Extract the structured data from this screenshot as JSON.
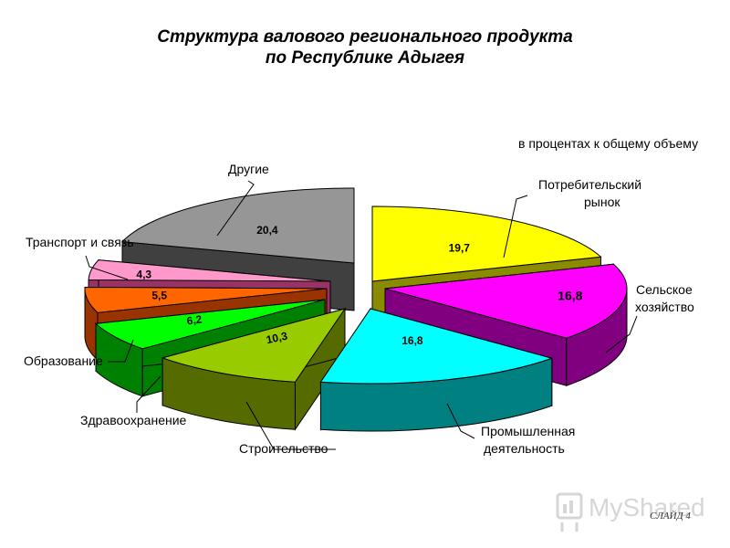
{
  "header": {
    "title_line1": "Структура валового регионального продукта",
    "title_line2": "по Республике Адыгея",
    "unit_note": "в процентах к общему объему"
  },
  "chart_data": {
    "type": "pie",
    "title": "Структура валового регионального продукта по Республике Адыгея",
    "unit": "в процентах к общему объему",
    "slices": [
      {
        "label": "Потребительский рынок",
        "value": 19.7,
        "value_text": "19,7",
        "color": "#ffff00",
        "side_color": "#8b8b00"
      },
      {
        "label": "Сельское хозяйство",
        "value": 16.8,
        "value_text": "16,8",
        "color": "#ff00ff",
        "side_color": "#800080"
      },
      {
        "label": "Промышленная деятельность",
        "value": 16.8,
        "value_text": "16,8",
        "color": "#00ffff",
        "side_color": "#008080"
      },
      {
        "label": "Строительство",
        "value": 10.3,
        "value_text": "10,3",
        "color": "#99cc00",
        "side_color": "#556b00"
      },
      {
        "label": "Здравоохранение",
        "value": 6.2,
        "value_text": "6,2",
        "color": "#00ff00",
        "side_color": "#008000"
      },
      {
        "label": "Образование",
        "value": 5.5,
        "value_text": "5,5",
        "color": "#ff6600",
        "side_color": "#993300"
      },
      {
        "label": "Транспорт и связь",
        "value": 4.3,
        "value_text": "4,3",
        "color": "#ff99cc",
        "side_color": "#993366"
      },
      {
        "label": "Другие",
        "value": 20.4,
        "value_text": "20,4",
        "color": "#969696",
        "side_color": "#404040"
      }
    ]
  },
  "watermark": {
    "text": "MyShared"
  },
  "footer": {
    "slide_label": "СЛАЙД 4"
  }
}
